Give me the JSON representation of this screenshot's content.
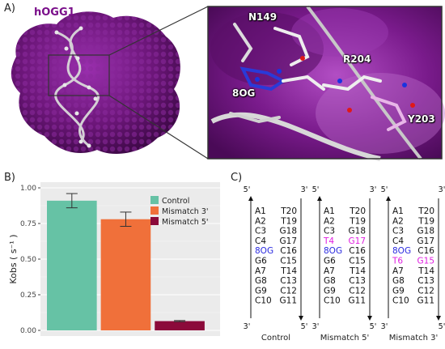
{
  "panel_a": {
    "letter": "A)",
    "protein_name": "hOGG1",
    "residues": [
      "N149",
      "R204",
      "8OG",
      "Y203"
    ]
  },
  "panel_b": {
    "letter": "B)"
  },
  "panel_c": {
    "letter": "C)",
    "strand_end_5": "5'",
    "strand_end_3": "3'",
    "columns": [
      {
        "caption": "Control",
        "left": [
          "A1",
          "A2",
          "C3",
          "C4",
          "8OG",
          "G6",
          "A7",
          "G8",
          "G9",
          "C10"
        ],
        "right": [
          "T20",
          "T19",
          "G18",
          "G17",
          "C16",
          "C15",
          "T14",
          "C13",
          "C12",
          "G11"
        ],
        "left_colors": [
          "",
          "",
          "",
          "",
          "blue",
          "",
          "",
          "",
          "",
          ""
        ],
        "right_colors": [
          "",
          "",
          "",
          "",
          "",
          "",
          "",
          "",
          "",
          ""
        ]
      },
      {
        "caption": "Mismatch 5'",
        "left": [
          "A1",
          "A2",
          "C3",
          "T4",
          "8OG",
          "G6",
          "A7",
          "G8",
          "G9",
          "C10"
        ],
        "right": [
          "T20",
          "T19",
          "G18",
          "G17",
          "C16",
          "C15",
          "T14",
          "C13",
          "C12",
          "G11"
        ],
        "left_colors": [
          "",
          "",
          "",
          "magenta",
          "blue",
          "",
          "",
          "",
          "",
          ""
        ],
        "right_colors": [
          "",
          "",
          "",
          "magenta",
          "",
          "",
          "",
          "",
          "",
          ""
        ]
      },
      {
        "caption": "Mismatch 3'",
        "left": [
          "A1",
          "A2",
          "C3",
          "C4",
          "8OG",
          "T6",
          "A7",
          "G8",
          "G9",
          "C10"
        ],
        "right": [
          "T20",
          "T19",
          "G18",
          "G17",
          "C16",
          "G15",
          "T14",
          "C13",
          "C12",
          "G11"
        ],
        "left_colors": [
          "",
          "",
          "",
          "",
          "blue",
          "magenta",
          "",
          "",
          "",
          "",
          ""
        ],
        "right_colors": [
          "",
          "",
          "",
          "",
          "",
          "magenta",
          "",
          "",
          "",
          ""
        ]
      }
    ]
  },
  "chart_data": {
    "type": "bar",
    "categories": [
      "Control",
      "Mismatch 3'",
      "Mismatch 5'"
    ],
    "values": [
      0.91,
      0.78,
      0.065
    ],
    "errors": [
      0.05,
      0.05,
      0.004
    ],
    "colors": [
      "#66c2a5",
      "#f0703a",
      "#8b0a3a"
    ],
    "ylabel": "Kobs ( s⁻¹ )",
    "ylim": [
      0,
      1.0
    ],
    "yticks": [
      "0.00",
      "0.25",
      "0.50",
      "0.75",
      "1.00"
    ],
    "ytick_values": [
      0,
      0.25,
      0.5,
      0.75,
      1.0
    ],
    "legend": [
      "Control",
      "Mismatch 3'",
      "Mismatch 5'"
    ],
    "legend_position": "top-right",
    "grid": true,
    "background": "#ebebeb"
  },
  "colors": {
    "protein": "#6a1478",
    "protein_light": "#8e2a9e",
    "zoom_border": "#333333"
  }
}
